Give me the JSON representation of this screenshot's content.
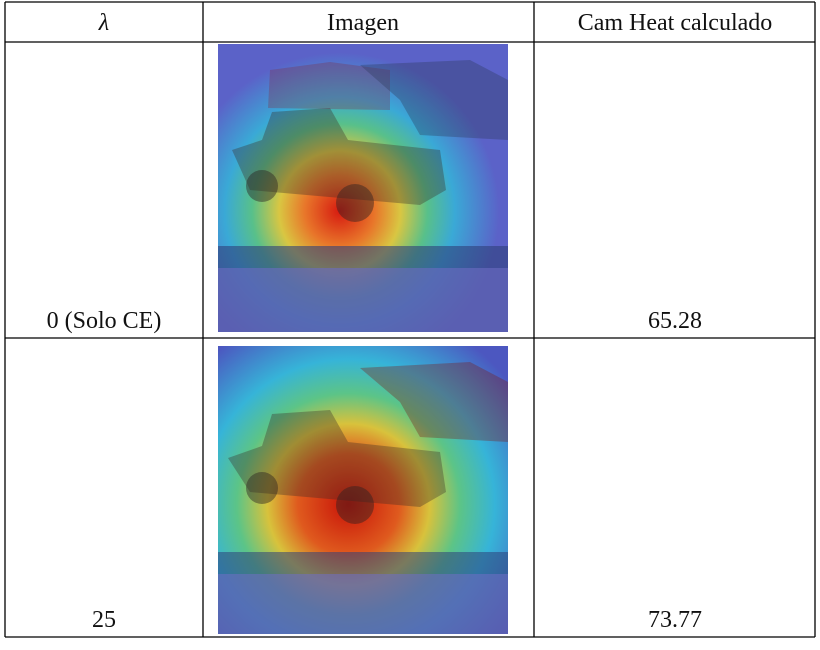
{
  "table": {
    "header": [
      "λ",
      "Imagen",
      "Cam Heat calculado"
    ],
    "rows": [
      [
        "0 (Solo CE)",
        "65.28"
      ],
      [
        "25",
        "73.77"
      ]
    ]
  }
}
